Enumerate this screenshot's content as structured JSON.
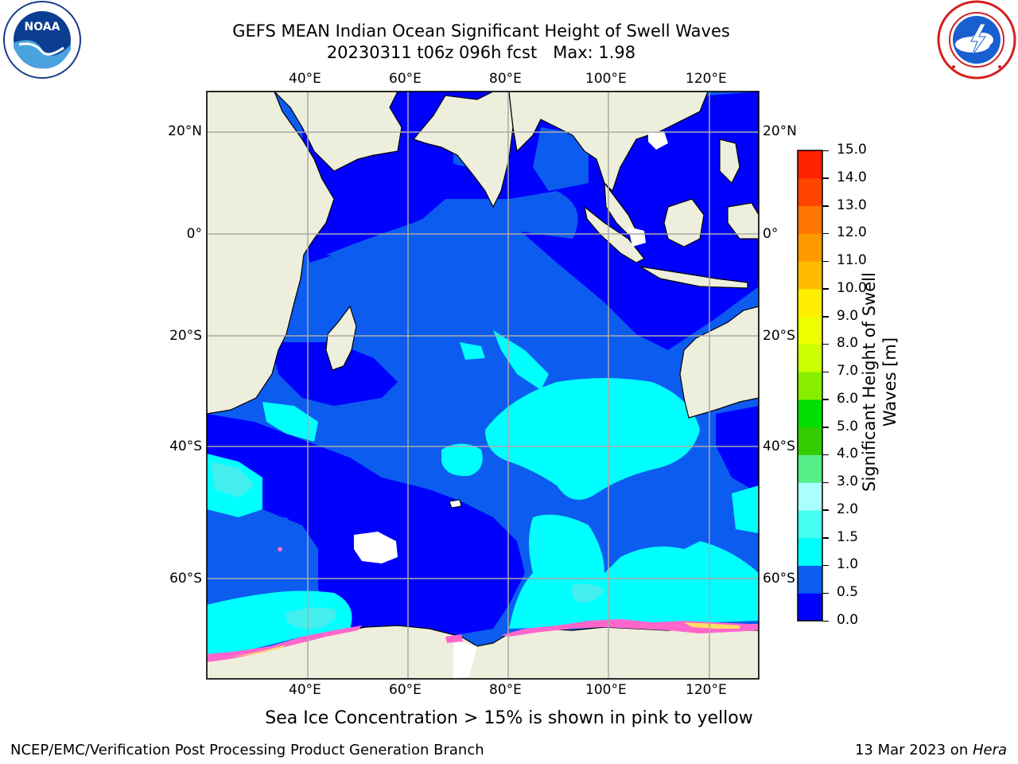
{
  "title": {
    "line1": "GEFS MEAN Indian Ocean Significant Height of Swell Waves",
    "line2": "20230311 t06z 096h fcst   Max: 1.98"
  },
  "logos": {
    "left": {
      "text": "NOAA",
      "icon": "noaa-logo",
      "ring_text": "NATIONAL OCEANIC AND ATMOSPHERIC ADMINISTRATION · U.S. DEPARTMENT OF COMMERCE"
    },
    "right": {
      "icon": "nws-logo",
      "ring_text": "NATIONAL WEATHER SERVICE"
    }
  },
  "map": {
    "lon_ticks": [
      "40°E",
      "60°E",
      "80°E",
      "100°E",
      "120°E"
    ],
    "lat_ticks_left": [
      "20°N",
      "0°",
      "20°S",
      "40°S",
      "60°S"
    ],
    "lat_ticks_right": [
      "20°N",
      "0°",
      "20°S",
      "40°S",
      "60°S"
    ]
  },
  "colorbar": {
    "label": "Significant Height of Swell Waves [m]",
    "ticks": [
      "0.0",
      "0.5",
      "1.0",
      "1.5",
      "2.0",
      "3.0",
      "4.0",
      "5.0",
      "6.0",
      "7.0",
      "8.0",
      "9.0",
      "10.0",
      "11.0",
      "12.0",
      "13.0",
      "14.0",
      "15.0"
    ],
    "colors": [
      "#0000ff",
      "#0c5cf0",
      "#00ffff",
      "#44ffee",
      "#aaffff",
      "#55ee88",
      "#33cc00",
      "#00dd00",
      "#88ee00",
      "#ccff00",
      "#eeff00",
      "#ffee00",
      "#ffbb00",
      "#ff9900",
      "#ff7700",
      "#ff4400",
      "#ff2200"
    ]
  },
  "caption": "Sea Ice Concentration > 15% is shown in pink to yellow",
  "footer": {
    "left": "NCEP/EMC/Verification Post Processing Product Generation Branch",
    "right_prefix": "13 Mar 2023 on ",
    "right_host": "Hera"
  },
  "palette": {
    "deep": "#0000ff",
    "mid": "#0c5cf0",
    "light": "#00ffff",
    "lighter": "#44eeee",
    "land": "#eeeedd",
    "ice_pink": "#ff66cc",
    "ice_yellow": "#ffdd66",
    "grid": "#aaaaaa"
  }
}
